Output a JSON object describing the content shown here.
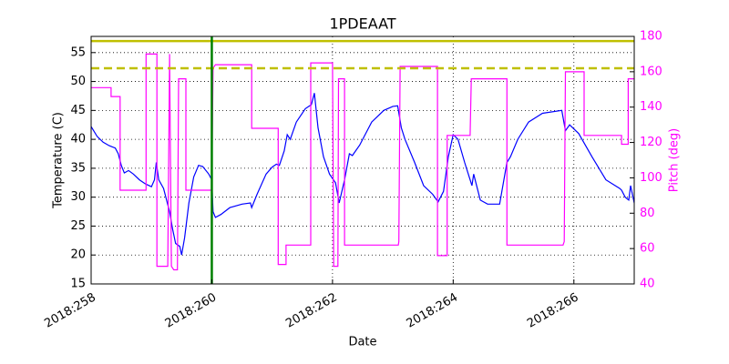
{
  "chart_data": {
    "type": "line",
    "title": "1PDEAAT",
    "xlabel": "Date",
    "ylabel": "Temperature (C)",
    "y2label": "Pitch (deg)",
    "xlim": [
      258,
      267
    ],
    "ylim": [
      15,
      57.8
    ],
    "y2lim": [
      40,
      180
    ],
    "xticks": [
      {
        "value": 258,
        "label": "2018:258"
      },
      {
        "value": 260,
        "label": "2018:260"
      },
      {
        "value": 262,
        "label": "2018:262"
      },
      {
        "value": 264,
        "label": "2018:264"
      },
      {
        "value": 266,
        "label": "2018:266"
      }
    ],
    "yticks": [
      15,
      20,
      25,
      30,
      35,
      40,
      45,
      50,
      55
    ],
    "y2ticks": [
      40,
      60,
      80,
      100,
      120,
      140,
      160,
      180
    ],
    "y2color": "#ff00ff",
    "grid": true,
    "hlines": [
      {
        "value": 57,
        "color": "#bfbf00",
        "style": "solid"
      },
      {
        "value": 52.3,
        "color": "#bfbf00",
        "style": "dashed"
      }
    ],
    "vlines": [
      {
        "value": 260,
        "color": "#008000"
      }
    ],
    "series": [
      {
        "color": "#0000ff",
        "axis": "y",
        "x": [
          258.0,
          258.1,
          258.2,
          258.3,
          258.4,
          258.45,
          258.5,
          258.55,
          258.62,
          258.7,
          258.8,
          258.9,
          259.0,
          259.05,
          259.08,
          259.12,
          259.2,
          259.3,
          259.35,
          259.4,
          259.47,
          259.5,
          259.55,
          259.62,
          259.7,
          259.78,
          259.85,
          259.95,
          260.0,
          260.02,
          260.06,
          260.15,
          260.3,
          260.5,
          260.64,
          260.66,
          260.75,
          260.9,
          261.0,
          261.07,
          261.12,
          261.2,
          261.25,
          261.3,
          261.4,
          261.55,
          261.65,
          261.7,
          261.76,
          261.85,
          261.95,
          262.05,
          262.11,
          262.2,
          262.28,
          262.33,
          262.45,
          262.65,
          262.85,
          263.0,
          263.08,
          263.14,
          263.2,
          263.36,
          263.51,
          263.66,
          263.75,
          263.84,
          263.92,
          264.0,
          264.08,
          264.19,
          264.28,
          264.31,
          264.34,
          264.45,
          264.57,
          264.77,
          264.89,
          264.95,
          265.07,
          265.25,
          265.48,
          265.8,
          265.86,
          265.93,
          266.08,
          266.3,
          266.53,
          266.76,
          266.79,
          266.85,
          266.91,
          266.94,
          267.0
        ],
        "values": [
          42.2,
          40.5,
          39.5,
          38.9,
          38.5,
          37.5,
          35.5,
          34.2,
          34.6,
          34,
          33,
          32.3,
          31.8,
          33,
          36,
          33,
          31.5,
          27.5,
          24.5,
          22,
          21.5,
          20,
          23,
          29,
          33.5,
          35.5,
          35.3,
          34,
          33,
          27.5,
          26.5,
          27,
          28.2,
          28.8,
          29,
          28.2,
          30.5,
          34,
          35.2,
          35.7,
          35.5,
          38,
          40.8,
          40,
          43,
          45.3,
          46,
          48,
          42,
          37,
          34,
          32.5,
          29,
          33,
          37.5,
          37.2,
          39,
          43,
          45,
          45.7,
          45.8,
          42,
          40,
          36,
          32,
          30.5,
          29.2,
          31,
          37,
          40.8,
          40,
          36,
          33,
          32,
          34,
          29.5,
          28.8,
          28.8,
          36,
          37,
          40,
          43,
          44.5,
          45,
          41.5,
          42.5,
          41,
          37,
          33,
          31.5,
          31.2,
          30,
          29.5,
          32,
          29
        ]
      },
      {
        "color": "#ff00ff",
        "axis": "y2",
        "x": [
          258.0,
          258.33,
          258.33,
          258.48,
          258.48,
          258.91,
          258.91,
          259.09,
          259.09,
          259.27,
          259.3,
          259.33,
          259.37,
          259.43,
          259.45,
          259.57,
          259.57,
          260.0,
          260.02,
          260.06,
          260.66,
          260.66,
          261.1,
          261.1,
          261.23,
          261.23,
          261.64,
          261.64,
          262.0,
          262.02,
          262.09,
          262.1,
          262.2,
          262.2,
          263.09,
          263.1,
          263.12,
          263.74,
          263.74,
          263.9,
          263.9,
          264.28,
          264.3,
          264.89,
          264.89,
          265.82,
          265.84,
          265.86,
          266.17,
          266.17,
          266.79,
          266.79,
          266.9,
          266.9,
          267.0
        ],
        "values": [
          151,
          151,
          146,
          146,
          93,
          93,
          170,
          170,
          50,
          50,
          170,
          50,
          48,
          48,
          156,
          156,
          93,
          93,
          162,
          164,
          164,
          128,
          128,
          51,
          51,
          62,
          62,
          165,
          165,
          50,
          50,
          156,
          156,
          62,
          62,
          64,
          163,
          163,
          56,
          56,
          124,
          124,
          156,
          156,
          62,
          62,
          64,
          160,
          160,
          124,
          124,
          119,
          119,
          156,
          156
        ]
      }
    ]
  }
}
